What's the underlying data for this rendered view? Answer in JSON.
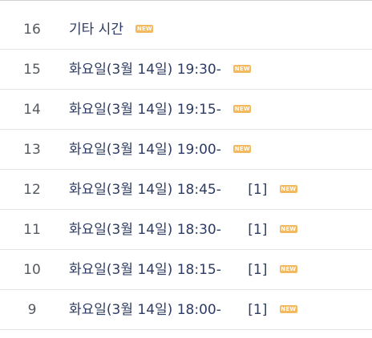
{
  "posts": [
    {
      "num": "16",
      "title": "기타 시간",
      "count": "",
      "new_label": "NEW"
    },
    {
      "num": "15",
      "title": "화요일(3월 14일) 19:30-",
      "count": "",
      "new_label": "NEW"
    },
    {
      "num": "14",
      "title": "화요일(3월 14일) 19:15-",
      "count": "",
      "new_label": "NEW"
    },
    {
      "num": "13",
      "title": "화요일(3월 14일) 19:00-",
      "count": "",
      "new_label": "NEW"
    },
    {
      "num": "12",
      "title": "화요일(3월 14일) 18:45-",
      "count": "[1]",
      "new_label": "NEW"
    },
    {
      "num": "11",
      "title": "화요일(3월 14일) 18:30-",
      "count": "[1]",
      "new_label": "NEW"
    },
    {
      "num": "10",
      "title": "화요일(3월 14일) 18:15-",
      "count": "[1]",
      "new_label": "NEW"
    },
    {
      "num": "9",
      "title": "화요일(3월 14일) 18:00-",
      "count": "[1]",
      "new_label": "NEW"
    }
  ],
  "colors": {
    "title": "#2c3b63",
    "number": "#555a61",
    "new_badge": "#f3b95f"
  }
}
